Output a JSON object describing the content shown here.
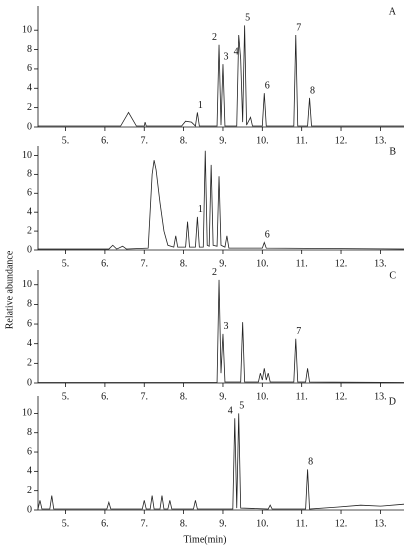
{
  "figure": {
    "xlabel": "Time(min)",
    "ylabel": "Relative abundance"
  },
  "chart_data": [
    {
      "type": "line",
      "panel_label": "A",
      "xlim": [
        4.3,
        13.6
      ],
      "ylim": [
        0,
        12.5
      ],
      "xticks": [
        {
          "value": 5,
          "label": "5."
        },
        {
          "value": 6,
          "label": "6."
        },
        {
          "value": 7,
          "label": "7."
        },
        {
          "value": 8,
          "label": "8."
        },
        {
          "value": 9,
          "label": "9."
        },
        {
          "value": 10,
          "label": "10."
        },
        {
          "value": 11,
          "label": "11."
        },
        {
          "value": 12,
          "label": "12."
        },
        {
          "value": 13,
          "label": "13."
        }
      ],
      "yticks": [
        0,
        2,
        4,
        6,
        8,
        10
      ],
      "x": [
        4.3,
        6.4,
        6.6,
        6.8,
        7.0,
        7.02,
        7.05,
        7.95,
        8.05,
        8.2,
        8.3,
        8.35,
        8.4,
        8.85,
        8.9,
        8.95,
        9.0,
        9.05,
        9.35,
        9.4,
        9.45,
        9.5,
        9.55,
        9.6,
        9.7,
        9.75,
        10.0,
        10.05,
        10.1,
        10.8,
        10.85,
        10.9,
        11.15,
        11.2,
        11.25,
        13.6
      ],
      "series": [
        {
          "color": "#222222",
          "values": [
            0.1,
            0.1,
            1.5,
            0.1,
            0.1,
            0.5,
            0.1,
            0.1,
            0.6,
            0.5,
            0.1,
            1.5,
            0.1,
            0.1,
            8.5,
            0.2,
            6.5,
            0.1,
            0.1,
            9.5,
            7,
            0.5,
            10.5,
            0.2,
            1,
            0.1,
            0.1,
            3.5,
            0.1,
            0.1,
            9.5,
            0.1,
            0.1,
            3,
            0.1,
            0.1
          ]
        }
      ],
      "annotations": [
        {
          "text": "1",
          "x": 8.35
        },
        {
          "text": "2",
          "x": 8.9
        },
        {
          "text": "3",
          "x": 9.0
        },
        {
          "text": "4",
          "x": 9.45
        },
        {
          "text": "5",
          "x": 9.55
        },
        {
          "text": "6",
          "x": 10.05
        },
        {
          "text": "7",
          "x": 10.85
        },
        {
          "text": "8",
          "x": 11.2
        }
      ]
    },
    {
      "type": "line",
      "panel_label": "B",
      "xlim": [
        4.3,
        13.6
      ],
      "ylim": [
        0,
        11
      ],
      "xticks": [
        {
          "value": 5,
          "label": "5."
        },
        {
          "value": 6,
          "label": "6."
        },
        {
          "value": 7,
          "label": "7."
        },
        {
          "value": 8,
          "label": "8."
        },
        {
          "value": 9,
          "label": "9."
        },
        {
          "value": 10,
          "label": "10."
        },
        {
          "value": 11,
          "label": "11."
        },
        {
          "value": 12,
          "label": "12."
        },
        {
          "value": 13,
          "label": "13."
        }
      ],
      "yticks": [
        0,
        2,
        4,
        6,
        8,
        10
      ],
      "x": [
        4.3,
        6.1,
        6.2,
        6.3,
        6.45,
        6.55,
        7.1,
        7.2,
        7.25,
        7.3,
        7.4,
        7.5,
        7.6,
        7.75,
        7.8,
        7.85,
        8.05,
        8.1,
        8.15,
        8.3,
        8.35,
        8.4,
        8.5,
        8.55,
        8.6,
        8.65,
        8.7,
        8.75,
        8.85,
        8.9,
        8.95,
        9.05,
        9.1,
        9.15,
        10.0,
        10.05,
        10.1,
        13.6
      ],
      "series": [
        {
          "color": "#222222",
          "values": [
            0.1,
            0.1,
            0.5,
            0.1,
            0.4,
            0.1,
            0.2,
            8,
            9.5,
            8.5,
            5,
            2,
            0.5,
            0.3,
            1.5,
            0.3,
            0.3,
            3,
            0.3,
            0.3,
            3.5,
            0.3,
            0.3,
            10.5,
            0.5,
            0.4,
            9,
            0.5,
            0.4,
            7.8,
            0.5,
            0.3,
            1.5,
            0.2,
            0.2,
            0.8,
            0.2,
            0.1
          ]
        }
      ],
      "annotations": [
        {
          "text": "1",
          "x": 8.35
        },
        {
          "text": "6",
          "x": 10.05
        }
      ]
    },
    {
      "type": "line",
      "panel_label": "C",
      "xlim": [
        4.3,
        13.6
      ],
      "ylim": [
        0,
        11.5
      ],
      "xticks": [
        {
          "value": 5,
          "label": "5."
        },
        {
          "value": 6,
          "label": "6."
        },
        {
          "value": 7,
          "label": "7."
        },
        {
          "value": 8,
          "label": "8."
        },
        {
          "value": 9,
          "label": "9."
        },
        {
          "value": 10,
          "label": "10."
        },
        {
          "value": 11,
          "label": "11."
        },
        {
          "value": 12,
          "label": "12."
        },
        {
          "value": 13,
          "label": "13."
        }
      ],
      "yticks": [
        0,
        2,
        4,
        6,
        8,
        10
      ],
      "x": [
        4.3,
        8.85,
        8.9,
        8.95,
        9.0,
        9.05,
        9.45,
        9.5,
        9.55,
        9.9,
        9.95,
        10.0,
        10.05,
        10.1,
        10.15,
        10.2,
        10.8,
        10.85,
        10.9,
        11.1,
        11.15,
        11.2,
        13.6
      ],
      "series": [
        {
          "color": "#222222",
          "values": [
            0.05,
            0.05,
            10.5,
            1,
            5,
            0.1,
            0.1,
            6.2,
            0.1,
            0.1,
            1,
            0.3,
            1.5,
            0.3,
            1,
            0.1,
            0.1,
            4.5,
            0.1,
            0.1,
            1.5,
            0.1,
            0.05
          ]
        }
      ],
      "annotations": [
        {
          "text": "2",
          "x": 8.9
        },
        {
          "text": "3",
          "x": 9.0
        },
        {
          "text": "7",
          "x": 10.85
        }
      ]
    },
    {
      "type": "line",
      "panel_label": "D",
      "xlim": [
        4.3,
        13.6
      ],
      "ylim": [
        0,
        11.8
      ],
      "xticks": [
        {
          "value": 5,
          "label": "5."
        },
        {
          "value": 6,
          "label": "6."
        },
        {
          "value": 7,
          "label": "7."
        },
        {
          "value": 8,
          "label": "8."
        },
        {
          "value": 9,
          "label": "9."
        },
        {
          "value": 10,
          "label": "10."
        },
        {
          "value": 11,
          "label": "11."
        },
        {
          "value": 12,
          "label": "12."
        },
        {
          "value": 13,
          "label": "13."
        }
      ],
      "yticks": [
        0,
        2,
        4,
        6,
        8,
        10
      ],
      "x": [
        4.3,
        4.35,
        4.4,
        4.6,
        4.65,
        4.7,
        6.05,
        6.1,
        6.15,
        6.95,
        7.0,
        7.05,
        7.15,
        7.2,
        7.25,
        7.4,
        7.45,
        7.5,
        7.6,
        7.65,
        7.7,
        8.25,
        8.3,
        8.35,
        9.25,
        9.3,
        9.35,
        9.4,
        9.45,
        10.15,
        10.2,
        10.25,
        11.1,
        11.15,
        11.2,
        11.9,
        12.5,
        13.0,
        13.6
      ],
      "series": [
        {
          "color": "#222222",
          "values": [
            0.1,
            1,
            0.1,
            0.1,
            1.5,
            0.1,
            0.1,
            0.8,
            0.1,
            0.1,
            1,
            0.1,
            0.1,
            1.5,
            0.1,
            0.1,
            1.5,
            0.1,
            0.1,
            1,
            0.1,
            0.1,
            1,
            0.1,
            0.1,
            9.5,
            0.2,
            10,
            0.2,
            0.1,
            0.5,
            0.1,
            0.1,
            4.2,
            0.1,
            0.3,
            0.5,
            0.4,
            0.6
          ]
        }
      ],
      "annotations": [
        {
          "text": "4",
          "x": 9.3
        },
        {
          "text": "5",
          "x": 9.4
        },
        {
          "text": "8",
          "x": 11.15
        }
      ]
    }
  ]
}
